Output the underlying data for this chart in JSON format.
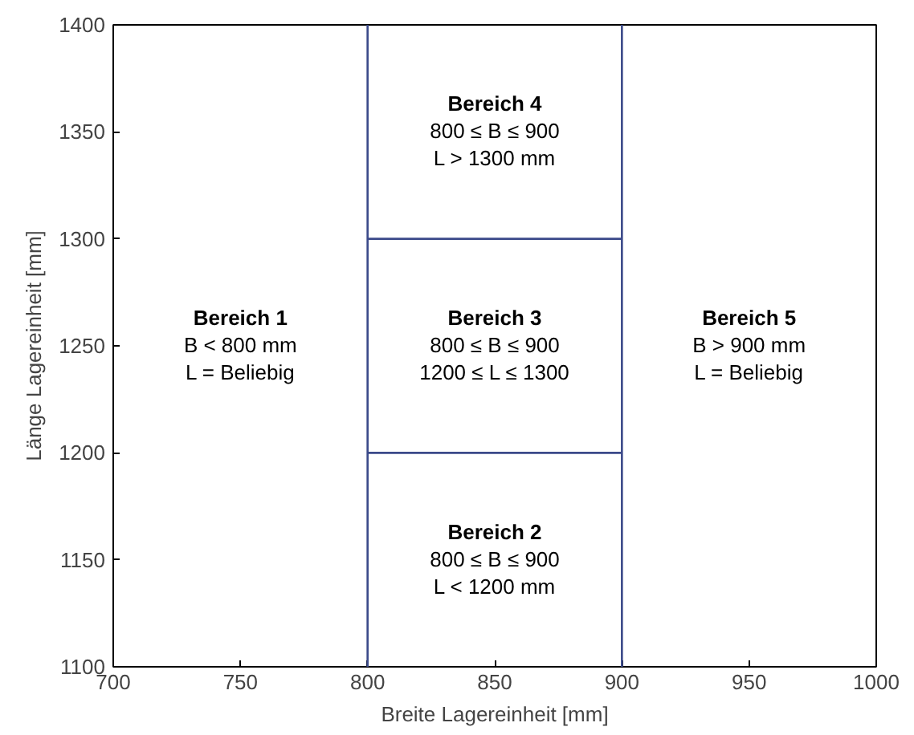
{
  "chart_data": {
    "type": "line",
    "xlabel": "Breite Lagereinheit [mm]",
    "ylabel": "Länge Lagereinheit [mm]",
    "xlim": [
      700,
      1000
    ],
    "ylim": [
      1100,
      1400
    ],
    "xticks": [
      700,
      750,
      800,
      850,
      900,
      950,
      1000
    ],
    "yticks": [
      1100,
      1150,
      1200,
      1250,
      1300,
      1350,
      1400
    ],
    "grid": false,
    "marker": "none",
    "x": [
      800,
      900
    ],
    "line_style": "solid",
    "series": [
      {
        "color": "#3b4a8a",
        "values": [
          1200,
          1200
        ]
      },
      {
        "color": "#3b4a8a",
        "values": [
          1300,
          1300
        ]
      }
    ],
    "ref_lines": [
      {
        "axis": "x",
        "value": 800,
        "color": "#3b4a8a"
      },
      {
        "axis": "x",
        "value": 900,
        "color": "#3b4a8a"
      }
    ],
    "annotations": [
      "Bereich 1\nB < 800 mm\nL = Beliebig",
      "Bereich 2\n800 ≤ B ≤ 900\nL < 1200 mm",
      "Bereich 3\n800 ≤ B ≤ 900\n1200 ≤ L ≤ 1300",
      "Bereich 4\n800 ≤ B ≤ 900\nL > 1300 mm",
      "Bereich 5\nB > 900 mm\nL = Beliebig"
    ]
  }
}
